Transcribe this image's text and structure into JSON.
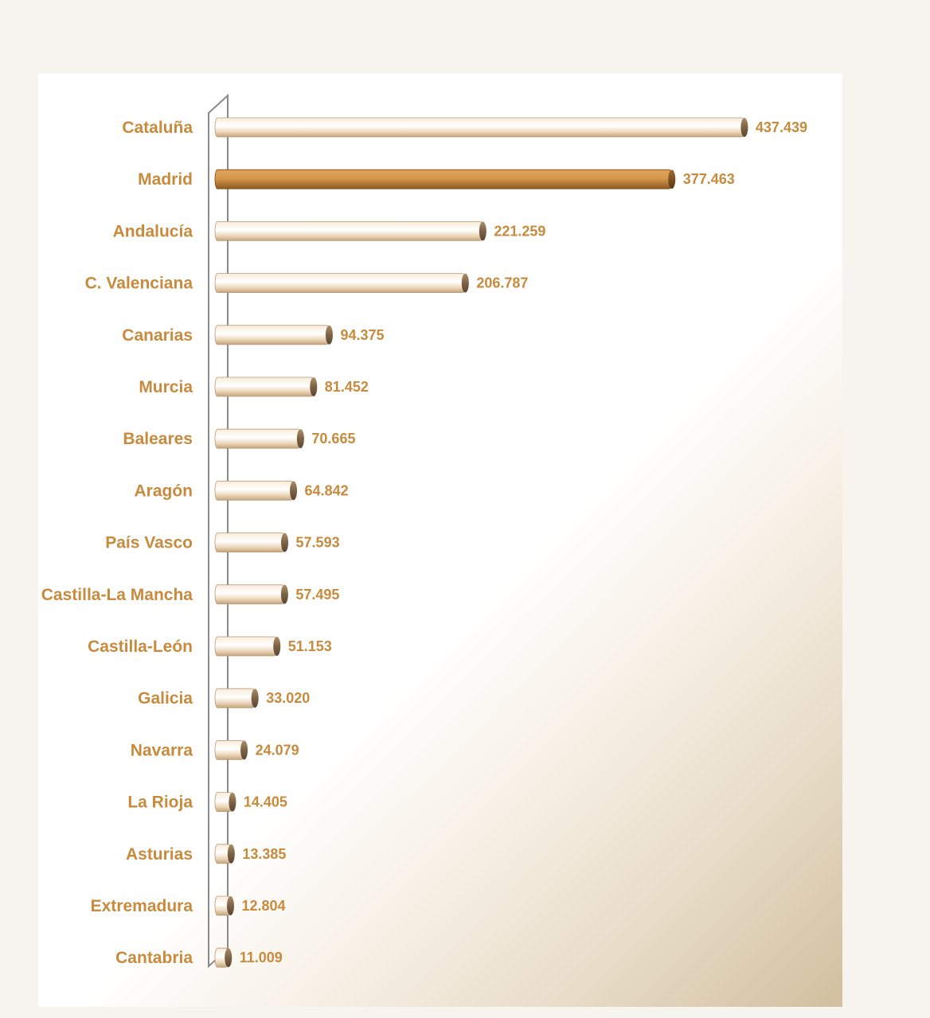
{
  "chart_data": {
    "type": "bar",
    "orientation": "horizontal",
    "categories": [
      "Cataluña",
      "Madrid",
      "Andalucía",
      "C. Valenciana",
      "Canarias",
      "Murcia",
      "Baleares",
      "Aragón",
      "País Vasco",
      "Castilla-La Mancha",
      "Castilla-León",
      "Galicia",
      "Navarra",
      "La Rioja",
      "Asturias",
      "Extremadura",
      "Cantabria"
    ],
    "values": [
      437439,
      377463,
      221259,
      206787,
      94375,
      81452,
      70665,
      64842,
      57593,
      57495,
      51153,
      33020,
      24079,
      14405,
      13385,
      12804,
      11009
    ],
    "value_labels": [
      "437.439",
      "377.463",
      "221.259",
      "206.787",
      "94.375",
      "81.452",
      "70.665",
      "64.842",
      "57.593",
      "57.495",
      "51.153",
      "33.020",
      "24.079",
      "14.405",
      "13.385",
      "12.804",
      "11.009"
    ],
    "highlight": "Madrid",
    "title": "",
    "xlabel": "",
    "ylabel": "",
    "xlim": [
      0,
      450000
    ],
    "grid": false,
    "legend": "none"
  },
  "colors": {
    "page_background": "#f7f3ee",
    "bar": "#eed9bf",
    "bar_highlight": "#c98a3e",
    "label_text": "#c88a3c",
    "axis": "#8a8a8a"
  }
}
